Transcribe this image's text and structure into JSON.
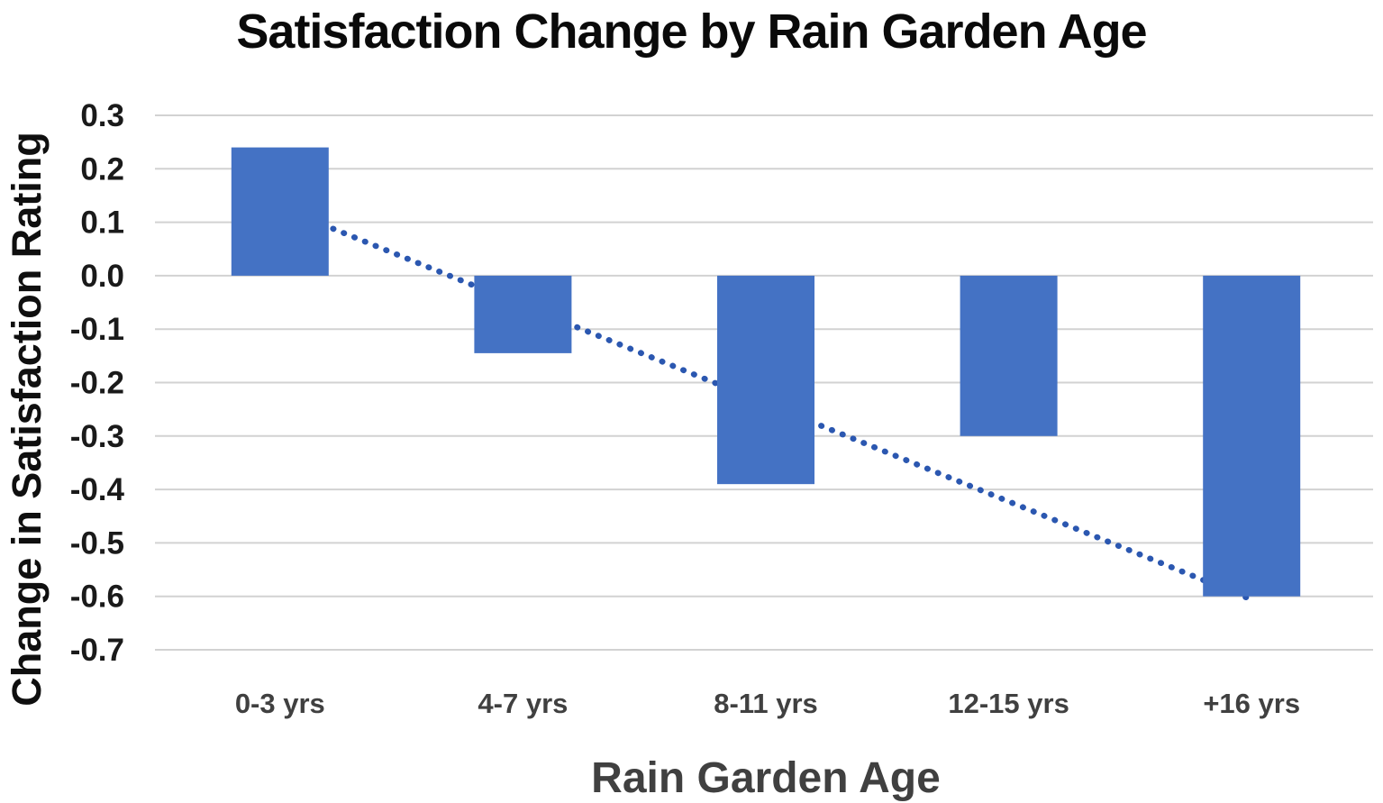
{
  "chart_data": {
    "type": "bar",
    "title": "Satisfaction Change by Rain Garden Age",
    "xlabel": "Rain Garden Age",
    "ylabel": "Change in Satisfaction Rating",
    "categories": [
      "0-3 yrs",
      "4-7 yrs",
      "8-11 yrs",
      "12-15 yrs",
      "+16 yrs"
    ],
    "values": [
      0.24,
      -0.145,
      -0.39,
      -0.3,
      -0.6
    ],
    "ylim": [
      -0.7,
      0.3
    ],
    "ytick_step": 0.1,
    "ytick_labels": [
      "0.3",
      "0.2",
      "0.1",
      "0.0",
      "-0.1",
      "-0.2",
      "-0.3",
      "-0.4",
      "-0.5",
      "-0.6",
      "-0.7"
    ],
    "grid": true,
    "legend": false,
    "trendline": {
      "style": "dotted",
      "type": "linear",
      "start": {
        "category_index": 1,
        "value": 0.128
      },
      "end": {
        "category_index": 5,
        "value": -0.606
      }
    },
    "colors": {
      "bar": "#4472C4",
      "trendline": "#2b57b0",
      "gridline": "#d2d2d2",
      "tick_label": "#1a1a1a",
      "category_label": "#404040",
      "x_axis_title": "#404040",
      "y_axis_title": "#0f0f0f",
      "title": "#0a0a0a",
      "background": "#ffffff"
    }
  }
}
